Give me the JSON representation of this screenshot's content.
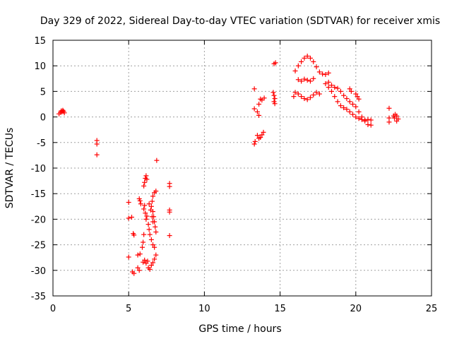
{
  "chart_data": {
    "type": "scatter",
    "title": "Day 329 of 2022, Sidereal Day-to-day VTEC variation (SDTVAR) for receiver xmis",
    "xlabel": "GPS time / hours",
    "ylabel": "SDTVAR / TECUs",
    "xlim": [
      0,
      25
    ],
    "ylim": [
      -35,
      15
    ],
    "xticks": [
      0,
      5,
      10,
      15,
      20,
      25
    ],
    "yticks": [
      -35,
      -30,
      -25,
      -20,
      -15,
      -10,
      -5,
      0,
      5,
      10,
      15
    ],
    "grid": true,
    "marker": "+",
    "color": "#ff0000",
    "series": [
      {
        "name": "SDTVAR",
        "points": [
          [
            0.4,
            0.6
          ],
          [
            0.5,
            0.9
          ],
          [
            0.55,
            1.2
          ],
          [
            0.6,
            1.0
          ],
          [
            0.65,
            1.3
          ],
          [
            0.7,
            1.1
          ],
          [
            0.75,
            0.8
          ],
          [
            2.9,
            -4.6
          ],
          [
            2.9,
            -5.3
          ],
          [
            2.9,
            -7.4
          ],
          [
            5.0,
            -16.7
          ],
          [
            5.0,
            -19.8
          ],
          [
            5.0,
            -27.4
          ],
          [
            5.2,
            -19.6
          ],
          [
            5.3,
            -22.8
          ],
          [
            5.35,
            -23.1
          ],
          [
            5.25,
            -30.3
          ],
          [
            5.35,
            -30.6
          ],
          [
            5.7,
            -30.0
          ],
          [
            5.6,
            -29.5
          ],
          [
            5.7,
            -16.0
          ],
          [
            5.75,
            -16.4
          ],
          [
            5.8,
            -17.0
          ],
          [
            5.6,
            -27.0
          ],
          [
            5.75,
            -26.8
          ],
          [
            5.9,
            -25.5
          ],
          [
            5.95,
            -24.5
          ],
          [
            6.0,
            -23.0
          ],
          [
            6.0,
            -18.0
          ],
          [
            6.05,
            -17.3
          ],
          [
            6.1,
            -18.8
          ],
          [
            6.15,
            -20.0
          ],
          [
            6.2,
            -19.4
          ],
          [
            6.0,
            -13.5
          ],
          [
            6.05,
            -12.8
          ],
          [
            6.1,
            -12.0
          ],
          [
            6.15,
            -11.5
          ],
          [
            6.2,
            -12.2
          ],
          [
            5.95,
            -28.4
          ],
          [
            6.05,
            -28.0
          ],
          [
            6.15,
            -28.6
          ],
          [
            6.25,
            -28.2
          ],
          [
            6.3,
            -29.5
          ],
          [
            6.4,
            -29.8
          ],
          [
            6.5,
            -29.0
          ],
          [
            6.6,
            -28.5
          ],
          [
            6.7,
            -27.8
          ],
          [
            6.8,
            -27.0
          ],
          [
            6.3,
            -21.0
          ],
          [
            6.35,
            -22.0
          ],
          [
            6.4,
            -23.0
          ],
          [
            6.5,
            -24.0
          ],
          [
            6.6,
            -25.0
          ],
          [
            6.7,
            -25.5
          ],
          [
            6.35,
            -17.0
          ],
          [
            6.45,
            -18.2
          ],
          [
            6.55,
            -19.5
          ],
          [
            6.6,
            -20.5
          ],
          [
            6.5,
            -17.5
          ],
          [
            6.55,
            -16.5
          ],
          [
            6.6,
            -15.5
          ],
          [
            6.7,
            -14.8
          ],
          [
            6.8,
            -14.5
          ],
          [
            6.6,
            -18.5
          ],
          [
            6.65,
            -19.5
          ],
          [
            6.7,
            -20.5
          ],
          [
            6.75,
            -21.5
          ],
          [
            6.8,
            -22.5
          ],
          [
            6.85,
            -8.5
          ],
          [
            7.7,
            -13.0
          ],
          [
            7.7,
            -13.6
          ],
          [
            7.7,
            -18.2
          ],
          [
            7.7,
            -18.6
          ],
          [
            7.7,
            -23.2
          ],
          [
            13.3,
            5.5
          ],
          [
            13.3,
            1.6
          ],
          [
            13.3,
            -5.3
          ],
          [
            13.35,
            -4.8
          ],
          [
            13.6,
            2.5
          ],
          [
            13.7,
            3.5
          ],
          [
            13.8,
            3.3
          ],
          [
            13.95,
            3.7
          ],
          [
            13.5,
            -3.6
          ],
          [
            13.6,
            -4.2
          ],
          [
            13.7,
            -4.0
          ],
          [
            13.8,
            -3.5
          ],
          [
            13.9,
            -3.0
          ],
          [
            13.5,
            1.0
          ],
          [
            13.6,
            0.3
          ],
          [
            14.6,
            10.4
          ],
          [
            14.7,
            10.6
          ],
          [
            14.55,
            4.8
          ],
          [
            14.6,
            4.2
          ],
          [
            14.65,
            3.6
          ],
          [
            14.6,
            3.0
          ],
          [
            14.65,
            2.6
          ],
          [
            15.9,
            4.0
          ],
          [
            16.0,
            4.8
          ],
          [
            16.2,
            4.5
          ],
          [
            16.4,
            4.0
          ],
          [
            16.6,
            3.6
          ],
          [
            16.8,
            3.4
          ],
          [
            17.0,
            3.8
          ],
          [
            17.2,
            4.3
          ],
          [
            17.4,
            4.8
          ],
          [
            17.6,
            4.5
          ],
          [
            16.0,
            9.0
          ],
          [
            16.2,
            10.0
          ],
          [
            16.4,
            10.8
          ],
          [
            16.6,
            11.5
          ],
          [
            16.8,
            11.9
          ],
          [
            17.0,
            11.5
          ],
          [
            17.2,
            10.8
          ],
          [
            17.4,
            9.8
          ],
          [
            17.6,
            8.8
          ],
          [
            17.8,
            8.4
          ],
          [
            18.0,
            8.3
          ],
          [
            18.2,
            8.6
          ],
          [
            16.2,
            7.3
          ],
          [
            16.4,
            7.0
          ],
          [
            16.6,
            7.4
          ],
          [
            16.8,
            7.2
          ],
          [
            17.0,
            7.0
          ],
          [
            17.2,
            7.5
          ],
          [
            18.0,
            6.5
          ],
          [
            18.2,
            5.8
          ],
          [
            18.4,
            5.0
          ],
          [
            18.6,
            4.0
          ],
          [
            18.8,
            3.0
          ],
          [
            19.0,
            2.2
          ],
          [
            19.2,
            1.8
          ],
          [
            19.4,
            1.5
          ],
          [
            19.6,
            1.0
          ],
          [
            19.8,
            0.5
          ],
          [
            20.0,
            0.0
          ],
          [
            20.2,
            -0.3
          ],
          [
            20.4,
            -0.5
          ],
          [
            20.6,
            -0.6
          ],
          [
            20.8,
            -0.5
          ],
          [
            21.0,
            -0.6
          ],
          [
            18.2,
            6.8
          ],
          [
            18.4,
            6.2
          ],
          [
            18.6,
            5.8
          ],
          [
            18.8,
            5.6
          ],
          [
            19.0,
            5.0
          ],
          [
            19.2,
            4.2
          ],
          [
            19.4,
            3.6
          ],
          [
            19.6,
            3.0
          ],
          [
            19.8,
            2.5
          ],
          [
            20.0,
            2.0
          ],
          [
            20.2,
            1.0
          ],
          [
            20.4,
            0.0
          ],
          [
            20.6,
            -0.8
          ],
          [
            20.8,
            -1.5
          ],
          [
            21.0,
            -1.6
          ],
          [
            19.6,
            5.5
          ],
          [
            19.7,
            5.0
          ],
          [
            20.0,
            4.5
          ],
          [
            20.1,
            4.0
          ],
          [
            20.2,
            3.5
          ],
          [
            22.2,
            1.7
          ],
          [
            22.2,
            -0.2
          ],
          [
            22.2,
            -1.0
          ],
          [
            22.5,
            0.2
          ],
          [
            22.6,
            0.5
          ],
          [
            22.7,
            0.2
          ],
          [
            22.8,
            -0.4
          ],
          [
            22.7,
            -0.8
          ],
          [
            22.55,
            -0.2
          ]
        ]
      }
    ]
  }
}
